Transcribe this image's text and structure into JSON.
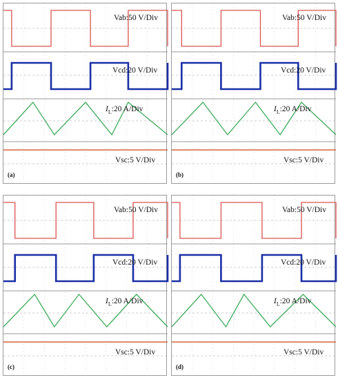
{
  "colors": {
    "vab": "#d9534f",
    "vcd": "#1a2fa6",
    "il": "#3daa5a",
    "vsc": "#d2673c",
    "grid": "#9a9a9a",
    "border": "#9a9a9a"
  },
  "chart_data": [
    {
      "type": "line",
      "panel_label": "(a)",
      "labels": {
        "vab": "Vab:50 V/Div",
        "vcd": "Vcd:20 V/Div",
        "il_sym": "I",
        "il_sub": "L",
        "il_rest": ":20 A/Div",
        "vsc": "Vsc:5 V/Div"
      },
      "edges": [
        0.05,
        0.29,
        0.53,
        0.76,
        1.0
      ],
      "il_peaks": [
        0.18,
        0.5,
        0.76
      ],
      "il_troughs": [
        0.0,
        0.31,
        0.66,
        1.0
      ]
    },
    {
      "type": "line",
      "panel_label": "(b)",
      "labels": {
        "vab": "Vab:50 V/Div",
        "vcd": "Vcd:20 V/Div",
        "il_sym": "I",
        "il_sub": "L",
        "il_rest": ":20 A/Div",
        "vsc": "Vsc:5 V/Div"
      },
      "edges": [
        0.06,
        0.3,
        0.54,
        0.77,
        1.0
      ],
      "il_peaks": [
        0.19,
        0.51,
        0.79
      ],
      "il_troughs": [
        0.0,
        0.34,
        0.66,
        1.0
      ]
    },
    {
      "type": "line",
      "panel_label": "(c)",
      "labels": {
        "vab": "Vab:50 V/Div",
        "vcd": "Vcd:20 V/Div",
        "il_sym": "I",
        "il_sub": "L",
        "il_rest": ":20 A/Div",
        "vsc": "Vsc:5 V/Div"
      },
      "edges": [
        0.07,
        0.32,
        0.55,
        0.79,
        1.0
      ],
      "il_peaks": [
        0.19,
        0.46,
        0.81
      ],
      "il_troughs": [
        0.0,
        0.31,
        0.63,
        1.0
      ]
    },
    {
      "type": "line",
      "panel_label": "(d)",
      "labels": {
        "vab": "Vab:50 V/Div",
        "vcd": "Vcd:20 V/Div",
        "il_sym": "I",
        "il_sub": "L",
        "il_rest": ":20 A/Div",
        "vsc": "Vsc:5 V/Div"
      },
      "edges": [
        0.05,
        0.3,
        0.55,
        0.79,
        1.0
      ],
      "il_peaks": [
        0.18,
        0.44,
        0.8
      ],
      "il_troughs": [
        0.0,
        0.33,
        0.6,
        1.0
      ]
    }
  ]
}
